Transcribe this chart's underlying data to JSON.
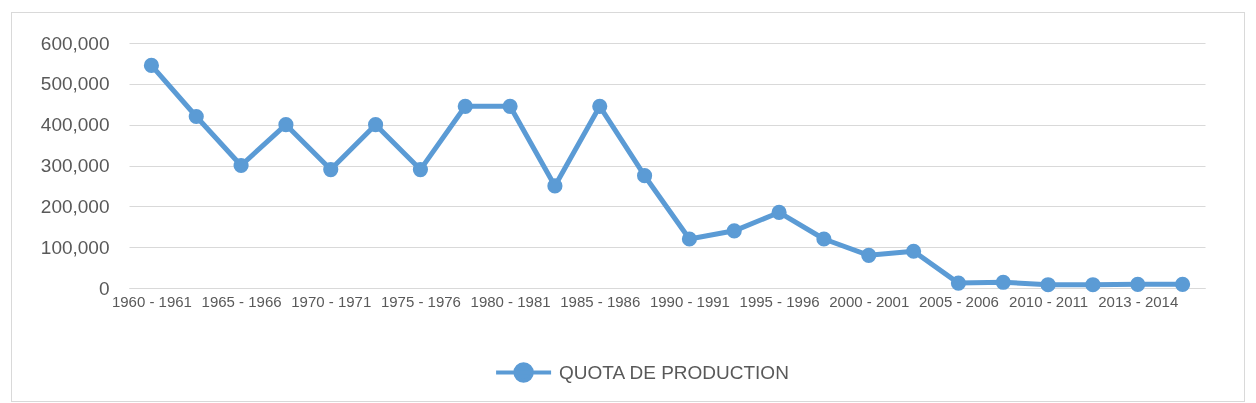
{
  "chart_data": {
    "type": "line",
    "categories": [
      "1960 - 1961",
      null,
      "1965 - 1966",
      null,
      "1970 - 1971",
      null,
      "1975 - 1976",
      null,
      "1980 - 1981",
      null,
      "1985 - 1986",
      null,
      "1990 - 1991",
      null,
      "1995 - 1996",
      null,
      "2000 - 2001",
      null,
      "2005 - 2006",
      null,
      "2010 - 2011",
      null,
      "2013 - 2014",
      null
    ],
    "series": [
      {
        "name": "QUOTA DE PRODUCTION",
        "color": "#5b9bd5",
        "values": [
          545000,
          420000,
          300000,
          400000,
          290000,
          400000,
          290000,
          445000,
          445000,
          250000,
          445000,
          275000,
          120000,
          140000,
          185000,
          120000,
          80000,
          90000,
          12000,
          14000,
          8000,
          8000,
          9000,
          9000
        ]
      }
    ],
    "ylim": [
      0,
      600000
    ],
    "yticks": [
      0,
      {
        "value": 100000,
        "label": "100,000"
      },
      {
        "value": 200000,
        "label": "200,000"
      },
      {
        "value": 300000,
        "label": "300,000"
      },
      {
        "value": 400000,
        "label": "400,000"
      },
      {
        "value": 500000,
        "label": "500,000"
      },
      {
        "value": 600000,
        "label": "600,000"
      }
    ],
    "grid": "y",
    "legend": "bottom",
    "marker": "circle",
    "line_style": "solid"
  }
}
